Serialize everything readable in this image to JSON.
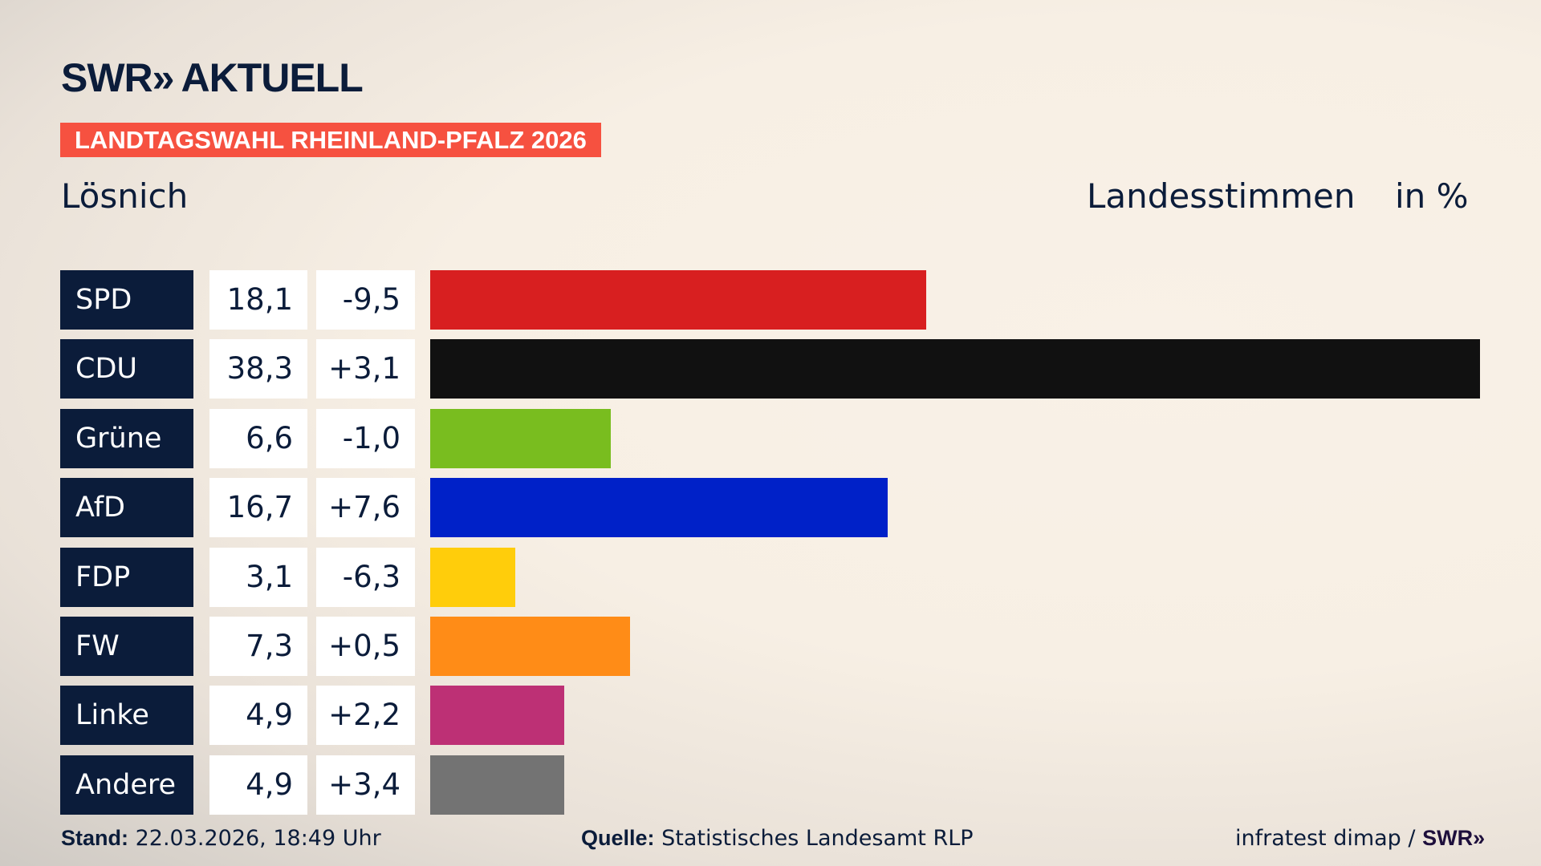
{
  "header": {
    "logo": "SWR",
    "logo_chevrons": "»",
    "logo_suffix": "AKTUELL",
    "banner": "LANDTAGSWAHL RHEINLAND-PFALZ 2026",
    "place": "Lösnich",
    "metric": "Landesstimmen",
    "unit": "in %"
  },
  "chart_data": {
    "type": "bar",
    "orientation": "horizontal",
    "title": "Lösnich – Landesstimmen in %",
    "categories": [
      "SPD",
      "CDU",
      "Grüne",
      "AfD",
      "FDP",
      "FW",
      "Linke",
      "Andere"
    ],
    "values": [
      18.1,
      38.3,
      6.6,
      16.7,
      3.1,
      7.3,
      4.9,
      4.9
    ],
    "value_labels": [
      "18,1",
      "38,3",
      "6,6",
      "16,7",
      "3,1",
      "7,3",
      "4,9",
      "4,9"
    ],
    "diff_labels": [
      "-9,5",
      "+3,1",
      "-1,0",
      "+7,6",
      "-6,3",
      "+0,5",
      "+2,2",
      "+3,4"
    ],
    "colors": [
      "#d81f20",
      "#111111",
      "#79bd1f",
      "#0021c8",
      "#ffcd0b",
      "#ff8c17",
      "#bd3075",
      "#737373"
    ],
    "xlim": [
      0,
      38.3
    ]
  },
  "footer": {
    "stand_label": "Stand:",
    "stand_value": "22.03.2026, 18:49 Uhr",
    "source_label": "Quelle:",
    "source_value": "Statistisches Landesamt RLP",
    "credit": "infratest dimap /",
    "credit_logo": "SWR»"
  }
}
